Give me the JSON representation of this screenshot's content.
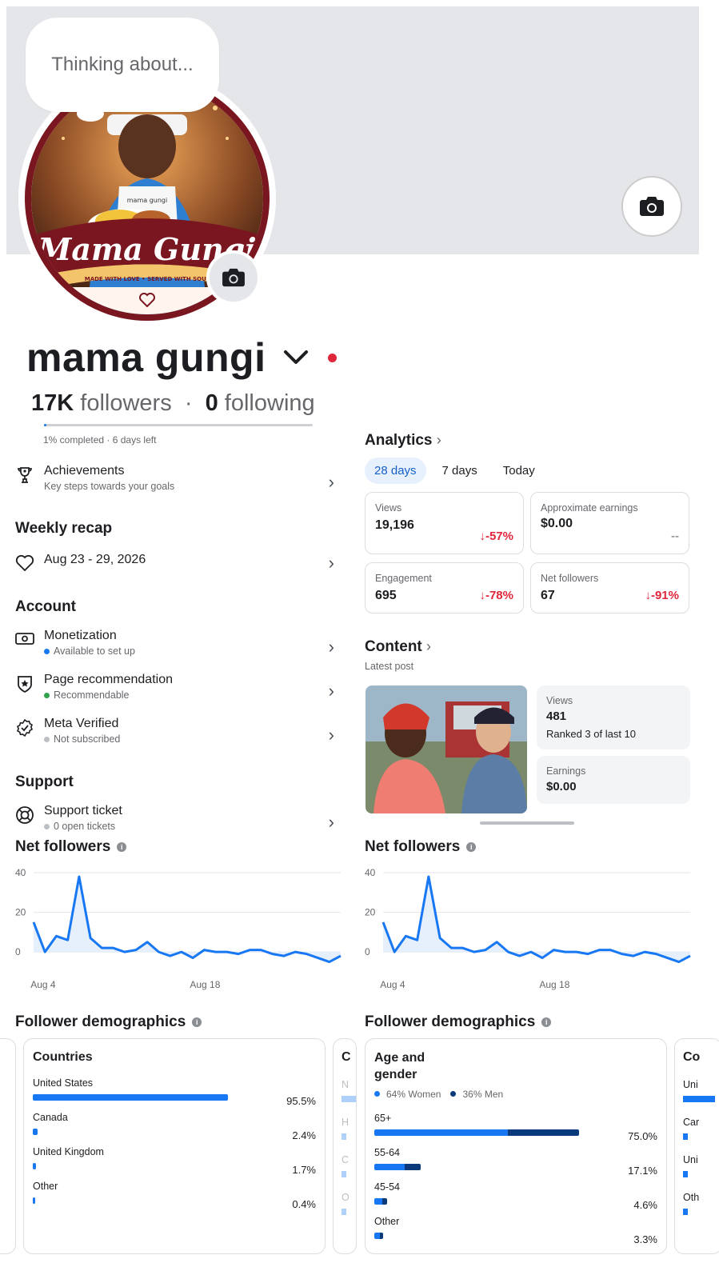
{
  "profile": {
    "name": "mama gungi",
    "bubble_text": "Thinking about...",
    "followers_count": "17K",
    "followers_label": "followers",
    "following_count": "0",
    "following_label": "following",
    "progress_text": "1% completed · 6 days left",
    "progress_fraction": 0.01,
    "avatar_banner": "Mama Gungi",
    "avatar_tagline": "MADE WITH LOVE • SERVED WITH SOUL",
    "apron_text": "mama gungi"
  },
  "left": {
    "achievements": {
      "title": "Achievements",
      "sub": "Key steps towards your goals"
    },
    "weekly_recap_title": "Weekly recap",
    "weekly_recap_item": "Aug 23 - 29, 2026",
    "account_title": "Account",
    "account_items": [
      {
        "title": "Monetization",
        "sub": "Available to set up",
        "dot": "#1877f2"
      },
      {
        "title": "Page recommendation",
        "sub": "Recommendable",
        "dot": "#31a24c"
      },
      {
        "title": "Meta Verified",
        "sub": "Not subscribed",
        "dot": "#bcc0c4"
      }
    ],
    "support_title": "Support",
    "support_item": {
      "title": "Support ticket",
      "sub": "0 open tickets",
      "dot": "#bcc0c4"
    }
  },
  "analytics": {
    "title": "Analytics",
    "tabs": [
      "28 days",
      "7 days",
      "Today"
    ],
    "cards": [
      {
        "label": "Views",
        "value": "19,196",
        "change": "-57%"
      },
      {
        "label": "Approximate earnings",
        "value": "$0.00",
        "change": "--"
      },
      {
        "label": "Engagement",
        "value": "695",
        "change": "-78%"
      },
      {
        "label": "Net followers",
        "value": "67",
        "change": "-91%"
      }
    ]
  },
  "content": {
    "title": "Content",
    "subtitle": "Latest post",
    "views_label": "Views",
    "views_value": "481",
    "views_rank": "Ranked 3 of last 10",
    "earnings_label": "Earnings",
    "earnings_value": "$0.00"
  },
  "net_followers": {
    "title": "Net followers",
    "info_icon": "info-icon"
  },
  "chart_data": [
    {
      "type": "area",
      "title": "Net followers",
      "x_tick_labels": [
        "Aug 4",
        "Aug 18"
      ],
      "y_ticks": [
        0,
        20,
        40
      ],
      "ylim": [
        -6,
        40
      ],
      "grid": true,
      "values": [
        15,
        0,
        8,
        6,
        38,
        7,
        2,
        2,
        0,
        1,
        5,
        0,
        -2,
        0,
        -3,
        1,
        0,
        0,
        -1,
        1,
        1,
        -1,
        -2,
        0,
        -1,
        -3,
        -5,
        -2
      ]
    },
    {
      "type": "area",
      "title": "Net followers",
      "x_tick_labels": [
        "Aug 4",
        "Aug 18"
      ],
      "y_ticks": [
        0,
        20,
        40
      ],
      "ylim": [
        -6,
        40
      ],
      "grid": true,
      "values": [
        15,
        0,
        8,
        6,
        38,
        7,
        2,
        2,
        0,
        1,
        5,
        0,
        -2,
        0,
        -3,
        1,
        0,
        0,
        -1,
        1,
        1,
        -1,
        -2,
        0,
        -1,
        -3,
        -5,
        -2
      ]
    },
    {
      "type": "bar",
      "title": "Countries",
      "categories": [
        "United States",
        "Canada",
        "United Kingdom",
        "Other"
      ],
      "values": [
        95.5,
        2.4,
        1.7,
        0.4
      ],
      "labels": [
        "95.5%",
        "2.4%",
        "1.7%",
        "0.4%"
      ]
    },
    {
      "type": "bar",
      "title": "Age and gender",
      "categories": [
        "65+",
        "55-64",
        "45-54",
        "Other"
      ],
      "series": [
        {
          "name": "64% Women",
          "values": [
            49,
            11,
            3,
            2.1
          ]
        },
        {
          "name": "36% Men",
          "values": [
            26,
            6.1,
            1.6,
            1.2
          ]
        }
      ],
      "labels": [
        "75.0%",
        "17.1%",
        "4.6%",
        "3.3%"
      ]
    }
  ],
  "demographics": {
    "title": "Follower demographics",
    "countries_title": "Countries",
    "age_title": "Age and gender",
    "legend_women": "64% Women",
    "legend_men": "36% Men",
    "peek_left_letter": "C",
    "peek_right_letter": "Co",
    "peek_left_items": [
      "N",
      "H",
      "C",
      "O"
    ],
    "peek_right_items": [
      "Uni",
      "Car",
      "Uni",
      "Oth"
    ]
  },
  "colors": {
    "accent": "#1877f2",
    "men": "#0b3a7a",
    "negative": "#e0263a"
  }
}
